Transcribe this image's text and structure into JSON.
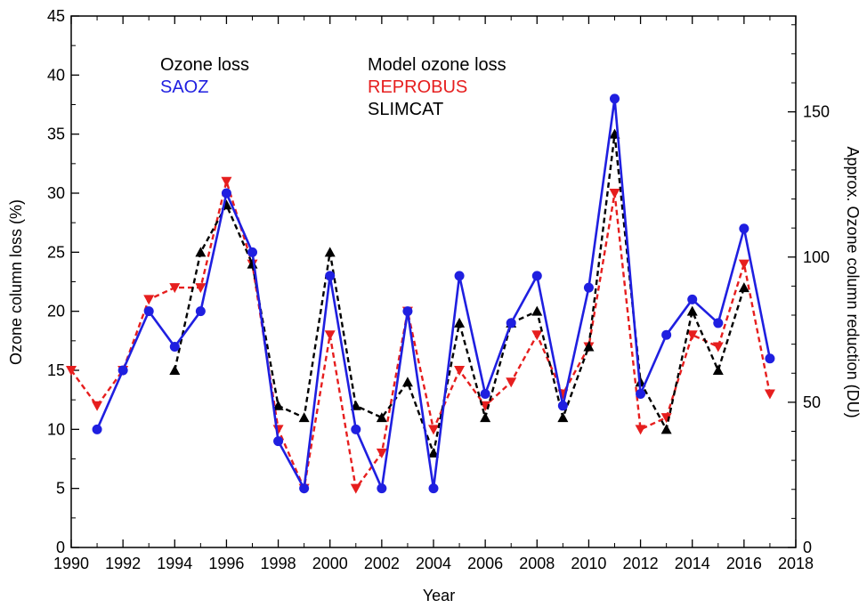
{
  "chart_data": {
    "type": "line",
    "xlabel": "Year",
    "ylabel": "Ozone column loss (%)",
    "y2label": "Approx. Ozone column reduction (DU)",
    "xlim": [
      1990,
      2018
    ],
    "ylim": [
      0,
      45
    ],
    "y2lim": [
      0,
      183
    ],
    "xticks": [
      "1990",
      "1992",
      "1994",
      "1996",
      "1998",
      "2000",
      "2002",
      "2004",
      "2006",
      "2008",
      "2010",
      "2012",
      "2014",
      "2016",
      "2018"
    ],
    "yticks": [
      "0",
      "5",
      "10",
      "15",
      "20",
      "25",
      "30",
      "35",
      "40",
      "45"
    ],
    "y2ticks": [
      "0",
      "50",
      "100",
      "150"
    ],
    "legend": {
      "heading1": "Ozone loss",
      "heading2": "Model ozone loss",
      "placement": "top-left"
    },
    "series": [
      {
        "name": "SAOZ",
        "color": "#1f1fe0",
        "style": "solid",
        "marker": "circle",
        "x": [
          1991,
          1992,
          1993,
          1994,
          1995,
          1996,
          1997,
          1998,
          1999,
          2000,
          2001,
          2002,
          2003,
          2004,
          2005,
          2006,
          2007,
          2008,
          2009,
          2010,
          2011,
          2012,
          2013,
          2014,
          2015,
          2016,
          2017
        ],
        "values": [
          10,
          15,
          20,
          17,
          20,
          30,
          25,
          9,
          5,
          23,
          10,
          5,
          20,
          5,
          23,
          13,
          19,
          23,
          12,
          22,
          38,
          13,
          18,
          21,
          19,
          27,
          16
        ]
      },
      {
        "name": "REPROBUS",
        "color": "#e61e1e",
        "style": "dashed",
        "marker": "triangle-down",
        "x": [
          1990,
          1991,
          1992,
          1993,
          1994,
          1995,
          1996,
          1997,
          1998,
          1999,
          2000,
          2001,
          2002,
          2003,
          2004,
          2005,
          2006,
          2007,
          2008,
          2009,
          2010,
          2011,
          2012,
          2013,
          2014,
          2015,
          2016,
          2017
        ],
        "values": [
          15,
          12,
          15,
          21,
          22,
          22,
          31,
          24,
          10,
          5,
          18,
          5,
          8,
          20,
          10,
          15,
          12,
          14,
          18,
          13,
          17,
          30,
          10,
          11,
          18,
          17,
          24,
          13
        ]
      },
      {
        "name": "SLIMCAT",
        "color": "#000000",
        "style": "dashed",
        "marker": "triangle-up",
        "x": [
          1994,
          1995,
          1996,
          1997,
          1998,
          1999,
          2000,
          2001,
          2002,
          2003,
          2004,
          2005,
          2006,
          2007,
          2008,
          2009,
          2010,
          2011,
          2012,
          2013,
          2014,
          2015,
          2016
        ],
        "values": [
          15,
          25,
          29,
          24,
          12,
          11,
          25,
          12,
          11,
          14,
          8,
          19,
          11,
          19,
          20,
          11,
          17,
          35,
          14,
          10,
          20,
          15,
          22
        ]
      }
    ]
  }
}
